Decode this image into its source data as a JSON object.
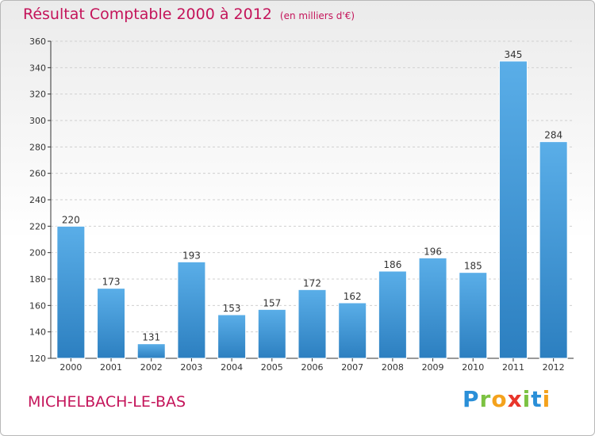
{
  "header": {
    "title": "Résultat Comptable 2000 à 2012",
    "subtitle": "(en milliers d'€)"
  },
  "footer": {
    "location": "MICHELBACH-LE-BAS",
    "logo_letters": [
      "P",
      "r",
      "o",
      "x",
      "i",
      "t",
      "i"
    ]
  },
  "colors": {
    "title": "#c4145a",
    "bar_light": "#5aaee8",
    "bar_dark": "#2c7fc0",
    "grid": "#cfcfcf",
    "axis": "#333333"
  },
  "chart_data": {
    "type": "bar",
    "title": "Résultat Comptable 2000 à 2012",
    "subtitle": "(en milliers d'€)",
    "xlabel": "",
    "ylabel": "",
    "categories": [
      "2000",
      "2001",
      "2002",
      "2003",
      "2004",
      "2005",
      "2006",
      "2007",
      "2008",
      "2009",
      "2010",
      "2011",
      "2012"
    ],
    "values": [
      220,
      173,
      131,
      193,
      153,
      157,
      172,
      162,
      186,
      196,
      185,
      345,
      284
    ],
    "ylim": [
      120,
      360
    ],
    "yticks": [
      120,
      140,
      160,
      180,
      200,
      220,
      240,
      260,
      280,
      300,
      320,
      340,
      360
    ],
    "grid": true,
    "legend": "none"
  }
}
